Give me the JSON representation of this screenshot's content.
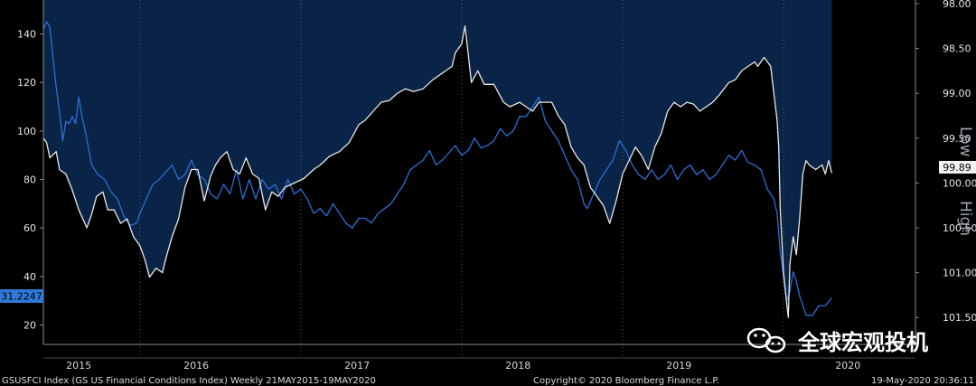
{
  "chart_data": {
    "type": "line",
    "left_axis": {
      "ylim": [
        12,
        154
      ],
      "ticks": [
        "20",
        "40",
        "60",
        "80",
        "100",
        "120",
        "140"
      ],
      "tick_values": [
        20,
        40,
        60,
        80,
        100,
        120,
        140
      ],
      "last_value_label": "31.2247",
      "last_value": 31.2247
    },
    "right_axis": {
      "inverted": true,
      "ylim": [
        97.96,
        101.8
      ],
      "ticks": [
        "98.00",
        "98.50",
        "99.00",
        "99.50",
        "100.00",
        "100.50",
        "101.00",
        "101.50"
      ],
      "tick_values": [
        98.0,
        98.5,
        99.0,
        99.5,
        100.0,
        100.5,
        101.0,
        101.5
      ],
      "last_value_label": "99.89",
      "last_value": 99.89,
      "side_label_low": "Low",
      "side_label_high": "High"
    },
    "x_axis": {
      "range": [
        2015.0,
        2020.42
      ],
      "year_labels": [
        "2015",
        "2016",
        "2017",
        "2018",
        "2019",
        "2020"
      ],
      "year_label_positions": [
        2015.22,
        2015.95,
        2016.95,
        2017.95,
        2018.95,
        2020.0
      ],
      "year_boundaries": [
        2015.6,
        2016.6,
        2017.6,
        2018.6,
        2019.6
      ]
    },
    "series": [
      {
        "name": "GSUSFCI Index (GS US Financial Conditions Index)",
        "axis": "right",
        "color": "#e8e8e8",
        "points": [
          [
            2015.0,
            99.5
          ],
          [
            2015.02,
            99.55
          ],
          [
            2015.04,
            99.72
          ],
          [
            2015.08,
            99.65
          ],
          [
            2015.1,
            99.85
          ],
          [
            2015.14,
            99.9
          ],
          [
            2015.18,
            100.08
          ],
          [
            2015.22,
            100.3
          ],
          [
            2015.27,
            100.5
          ],
          [
            2015.3,
            100.35
          ],
          [
            2015.33,
            100.15
          ],
          [
            2015.37,
            100.1
          ],
          [
            2015.4,
            100.3
          ],
          [
            2015.44,
            100.3
          ],
          [
            2015.48,
            100.45
          ],
          [
            2015.52,
            100.4
          ],
          [
            2015.56,
            100.6
          ],
          [
            2015.6,
            100.7
          ],
          [
            2015.63,
            100.85
          ],
          [
            2015.66,
            101.05
          ],
          [
            2015.7,
            100.95
          ],
          [
            2015.74,
            101.0
          ],
          [
            2015.76,
            100.85
          ],
          [
            2015.8,
            100.6
          ],
          [
            2015.84,
            100.4
          ],
          [
            2015.88,
            100.05
          ],
          [
            2015.92,
            99.85
          ],
          [
            2015.96,
            99.85
          ],
          [
            2016.0,
            100.2
          ],
          [
            2016.04,
            99.92
          ],
          [
            2016.07,
            99.8
          ],
          [
            2016.1,
            99.72
          ],
          [
            2016.14,
            99.65
          ],
          [
            2016.18,
            99.85
          ],
          [
            2016.22,
            99.9
          ],
          [
            2016.26,
            99.72
          ],
          [
            2016.3,
            99.9
          ],
          [
            2016.34,
            99.95
          ],
          [
            2016.38,
            100.3
          ],
          [
            2016.42,
            100.1
          ],
          [
            2016.46,
            100.15
          ],
          [
            2016.5,
            100.05
          ],
          [
            2016.56,
            100.0
          ],
          [
            2016.62,
            99.95
          ],
          [
            2016.68,
            99.85
          ],
          [
            2016.72,
            99.8
          ],
          [
            2016.78,
            99.7
          ],
          [
            2016.84,
            99.65
          ],
          [
            2016.9,
            99.55
          ],
          [
            2016.96,
            99.35
          ],
          [
            2017.0,
            99.3
          ],
          [
            2017.05,
            99.2
          ],
          [
            2017.1,
            99.1
          ],
          [
            2017.15,
            99.08
          ],
          [
            2017.2,
            99.0
          ],
          [
            2017.25,
            98.95
          ],
          [
            2017.3,
            98.98
          ],
          [
            2017.36,
            98.95
          ],
          [
            2017.42,
            98.85
          ],
          [
            2017.46,
            98.8
          ],
          [
            2017.5,
            98.75
          ],
          [
            2017.54,
            98.7
          ],
          [
            2017.56,
            98.55
          ],
          [
            2017.6,
            98.45
          ],
          [
            2017.62,
            98.25
          ],
          [
            2017.63,
            98.4
          ],
          [
            2017.66,
            98.88
          ],
          [
            2017.7,
            98.75
          ],
          [
            2017.74,
            98.9
          ],
          [
            2017.8,
            98.9
          ],
          [
            2017.86,
            99.1
          ],
          [
            2017.9,
            99.15
          ],
          [
            2017.96,
            99.1
          ],
          [
            2018.0,
            99.15
          ],
          [
            2018.04,
            99.2
          ],
          [
            2018.08,
            99.1
          ],
          [
            2018.12,
            99.1
          ],
          [
            2018.16,
            99.1
          ],
          [
            2018.2,
            99.25
          ],
          [
            2018.24,
            99.35
          ],
          [
            2018.28,
            99.6
          ],
          [
            2018.32,
            99.72
          ],
          [
            2018.36,
            99.8
          ],
          [
            2018.4,
            100.05
          ],
          [
            2018.44,
            100.15
          ],
          [
            2018.48,
            100.25
          ],
          [
            2018.52,
            100.45
          ],
          [
            2018.56,
            100.2
          ],
          [
            2018.6,
            99.9
          ],
          [
            2018.64,
            99.75
          ],
          [
            2018.68,
            99.6
          ],
          [
            2018.72,
            99.7
          ],
          [
            2018.76,
            99.85
          ],
          [
            2018.8,
            99.6
          ],
          [
            2018.84,
            99.45
          ],
          [
            2018.88,
            99.2
          ],
          [
            2018.92,
            99.1
          ],
          [
            2018.96,
            99.15
          ],
          [
            2019.0,
            99.1
          ],
          [
            2019.04,
            99.12
          ],
          [
            2019.08,
            99.2
          ],
          [
            2019.12,
            99.15
          ],
          [
            2019.16,
            99.1
          ],
          [
            2019.2,
            99.02
          ],
          [
            2019.26,
            98.88
          ],
          [
            2019.3,
            98.85
          ],
          [
            2019.34,
            98.75
          ],
          [
            2019.38,
            98.7
          ],
          [
            2019.42,
            98.65
          ],
          [
            2019.44,
            98.7
          ],
          [
            2019.48,
            98.6
          ],
          [
            2019.52,
            98.7
          ],
          [
            2019.54,
            99.0
          ],
          [
            2019.56,
            99.3
          ],
          [
            2019.57,
            99.6
          ],
          [
            2019.58,
            100.3
          ],
          [
            2019.6,
            101.0
          ],
          [
            2019.62,
            101.35
          ],
          [
            2019.63,
            101.5
          ],
          [
            2019.64,
            100.9
          ],
          [
            2019.66,
            100.6
          ],
          [
            2019.68,
            100.8
          ],
          [
            2019.7,
            100.4
          ],
          [
            2019.72,
            99.9
          ],
          [
            2019.74,
            99.75
          ],
          [
            2019.76,
            99.8
          ],
          [
            2019.8,
            99.85
          ],
          [
            2019.84,
            99.8
          ],
          [
            2019.86,
            99.9
          ],
          [
            2019.88,
            99.75
          ],
          [
            2019.9,
            99.89
          ]
        ]
      },
      {
        "name": "Blue series (left axis)",
        "axis": "left",
        "color": "#2a6fd6",
        "points": [
          [
            2015.0,
            142
          ],
          [
            2015.02,
            145
          ],
          [
            2015.04,
            143
          ],
          [
            2015.06,
            130
          ],
          [
            2015.08,
            118
          ],
          [
            2015.1,
            108
          ],
          [
            2015.12,
            96
          ],
          [
            2015.14,
            104
          ],
          [
            2015.16,
            103
          ],
          [
            2015.18,
            106
          ],
          [
            2015.2,
            103
          ],
          [
            2015.22,
            114
          ],
          [
            2015.24,
            106
          ],
          [
            2015.26,
            100
          ],
          [
            2015.3,
            86
          ],
          [
            2015.34,
            82
          ],
          [
            2015.38,
            80
          ],
          [
            2015.42,
            75
          ],
          [
            2015.46,
            72
          ],
          [
            2015.5,
            65
          ],
          [
            2015.54,
            61
          ],
          [
            2015.58,
            62
          ],
          [
            2015.6,
            66
          ],
          [
            2015.64,
            72
          ],
          [
            2015.68,
            78
          ],
          [
            2015.72,
            80
          ],
          [
            2015.76,
            83
          ],
          [
            2015.8,
            86
          ],
          [
            2015.84,
            80
          ],
          [
            2015.88,
            82
          ],
          [
            2015.92,
            88
          ],
          [
            2015.96,
            82
          ],
          [
            2016.0,
            80
          ],
          [
            2016.04,
            74
          ],
          [
            2016.08,
            72
          ],
          [
            2016.12,
            78
          ],
          [
            2016.16,
            74
          ],
          [
            2016.2,
            84
          ],
          [
            2016.24,
            72
          ],
          [
            2016.28,
            80
          ],
          [
            2016.32,
            72
          ],
          [
            2016.36,
            80
          ],
          [
            2016.4,
            76
          ],
          [
            2016.44,
            78
          ],
          [
            2016.48,
            72
          ],
          [
            2016.52,
            80
          ],
          [
            2016.56,
            74
          ],
          [
            2016.6,
            76
          ],
          [
            2016.64,
            72
          ],
          [
            2016.68,
            66
          ],
          [
            2016.72,
            68
          ],
          [
            2016.76,
            65
          ],
          [
            2016.8,
            70
          ],
          [
            2016.84,
            66
          ],
          [
            2016.88,
            62
          ],
          [
            2016.92,
            60
          ],
          [
            2016.96,
            64
          ],
          [
            2017.0,
            64
          ],
          [
            2017.04,
            62
          ],
          [
            2017.08,
            66
          ],
          [
            2017.12,
            68
          ],
          [
            2017.16,
            70
          ],
          [
            2017.2,
            74
          ],
          [
            2017.24,
            78
          ],
          [
            2017.28,
            84
          ],
          [
            2017.32,
            86
          ],
          [
            2017.36,
            88
          ],
          [
            2017.4,
            92
          ],
          [
            2017.44,
            86
          ],
          [
            2017.48,
            88
          ],
          [
            2017.52,
            91
          ],
          [
            2017.56,
            94
          ],
          [
            2017.6,
            90
          ],
          [
            2017.64,
            92
          ],
          [
            2017.68,
            97
          ],
          [
            2017.72,
            93
          ],
          [
            2017.76,
            94
          ],
          [
            2017.8,
            96
          ],
          [
            2017.84,
            101
          ],
          [
            2017.88,
            98
          ],
          [
            2017.92,
            100
          ],
          [
            2017.96,
            106
          ],
          [
            2018.0,
            106
          ],
          [
            2018.04,
            110
          ],
          [
            2018.08,
            114
          ],
          [
            2018.12,
            104
          ],
          [
            2018.16,
            100
          ],
          [
            2018.2,
            96
          ],
          [
            2018.24,
            90
          ],
          [
            2018.28,
            84
          ],
          [
            2018.32,
            80
          ],
          [
            2018.36,
            70
          ],
          [
            2018.38,
            68
          ],
          [
            2018.42,
            74
          ],
          [
            2018.46,
            80
          ],
          [
            2018.5,
            84
          ],
          [
            2018.54,
            88
          ],
          [
            2018.58,
            96
          ],
          [
            2018.62,
            92
          ],
          [
            2018.66,
            86
          ],
          [
            2018.7,
            82
          ],
          [
            2018.74,
            80
          ],
          [
            2018.78,
            84
          ],
          [
            2018.82,
            80
          ],
          [
            2018.86,
            82
          ],
          [
            2018.9,
            86
          ],
          [
            2018.94,
            80
          ],
          [
            2018.98,
            84
          ],
          [
            2019.02,
            86
          ],
          [
            2019.06,
            82
          ],
          [
            2019.1,
            84
          ],
          [
            2019.14,
            80
          ],
          [
            2019.18,
            82
          ],
          [
            2019.22,
            86
          ],
          [
            2019.26,
            90
          ],
          [
            2019.3,
            88
          ],
          [
            2019.34,
            92
          ],
          [
            2019.38,
            87
          ],
          [
            2019.42,
            86
          ],
          [
            2019.46,
            84
          ],
          [
            2019.5,
            76
          ],
          [
            2019.54,
            72
          ],
          [
            2019.56,
            66
          ],
          [
            2019.58,
            50
          ],
          [
            2019.6,
            40
          ],
          [
            2019.62,
            30
          ],
          [
            2019.64,
            34
          ],
          [
            2019.66,
            42
          ],
          [
            2019.68,
            38
          ],
          [
            2019.7,
            32
          ],
          [
            2019.72,
            28
          ],
          [
            2019.74,
            24
          ],
          [
            2019.78,
            24
          ],
          [
            2019.82,
            28
          ],
          [
            2019.86,
            28
          ],
          [
            2019.9,
            31.2247
          ]
        ]
      }
    ]
  },
  "footer": {
    "left": "GSUSFCI Index (GS US Financial Conditions Index)  Weekly 21MAY2015-19MAY2020",
    "center": "Copyright© 2020 Bloomberg Finance L.P.",
    "right": "19-May-2020 20:36:11"
  },
  "watermark": {
    "icon": "wechat-icon",
    "text": "全球宏观投机"
  },
  "colors": {
    "plot_bg": "#000000",
    "shade": "#0a2447",
    "white_line": "#e8e8e8",
    "blue_line": "#2a6fd6",
    "left_badge": "#2f79d9",
    "right_badge": "#f2f2f2"
  }
}
